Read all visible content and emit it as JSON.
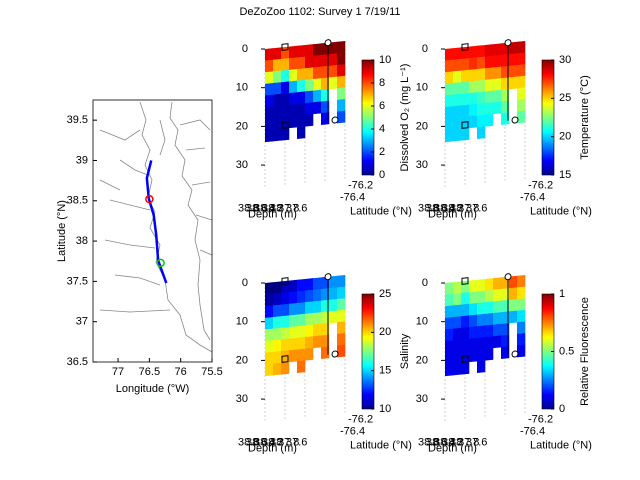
{
  "title": "DeZoZoo 1102: Survey 1 7/19/11",
  "chart_data": [
    {
      "type": "map",
      "x_label": "Longitude (°W)",
      "y_label": "Latitude (°N)",
      "xlim": [
        77.4,
        75.5
      ],
      "xticks": [
        77,
        76.5,
        76,
        75.5
      ],
      "ylim": [
        36.5,
        39.75
      ],
      "yticks": [
        36.5,
        37,
        37.5,
        38,
        38.5,
        39,
        39.5
      ],
      "track": {
        "color": "#0000ff",
        "lon": [
          76.47,
          76.54,
          76.51,
          76.43,
          76.39,
          76.36,
          76.23
        ],
        "lat": [
          39.0,
          38.78,
          38.53,
          38.32,
          38.07,
          37.76,
          37.48
        ]
      },
      "stations": {
        "lon": [
          76.5,
          76.32
        ],
        "lat": [
          38.52,
          37.73
        ],
        "colors": [
          "#ff0000",
          "#00cc00"
        ]
      }
    },
    {
      "type": "curtain",
      "c_label": "Dissolved O₂ (mg L⁻¹)",
      "clim": [
        0,
        10
      ],
      "cticks": [
        0,
        2,
        4,
        6,
        8,
        10
      ],
      "xticks": [
        38.8,
        38.6,
        38.4,
        38.2,
        38,
        37.8,
        37.6
      ],
      "yticks": [
        -76.2,
        -76.4
      ],
      "y_label": "Latitude (°N)",
      "z_label": "Depth (m)",
      "zlim": [
        0,
        33
      ],
      "zticks": [
        0,
        10,
        20,
        30
      ],
      "depths": [
        0,
        3,
        6,
        9,
        12,
        15,
        18,
        21
      ],
      "values": [
        [
          9,
          8,
          6,
          2,
          1,
          0.5,
          0.5,
          0.5
        ],
        [
          9,
          7,
          5,
          2,
          0.5,
          0.5,
          0.5,
          0.5
        ],
        [
          8,
          7,
          4,
          1,
          0.5,
          0.5,
          0.5,
          0.5
        ],
        [
          9,
          8,
          6,
          3,
          1,
          0.5,
          0.5,
          null
        ],
        [
          9,
          8,
          7,
          4,
          1,
          0.5,
          0.5,
          0.5
        ],
        [
          9,
          9,
          7,
          5,
          2,
          1,
          0.5,
          null
        ],
        [
          10,
          9,
          8,
          6,
          3,
          1,
          null,
          null
        ],
        [
          10,
          9,
          8,
          7,
          4,
          2,
          1,
          null
        ],
        [
          10,
          9,
          8,
          6,
          null,
          null,
          null,
          null
        ],
        [
          10,
          10,
          9,
          7,
          5,
          3,
          2,
          null
        ]
      ]
    },
    {
      "type": "curtain",
      "c_label": "Temperature (°C)",
      "clim": [
        15,
        30
      ],
      "cticks": [
        15,
        20,
        25,
        30
      ],
      "xticks": [
        38.8,
        38.6,
        38.4,
        38.2,
        38,
        37.8,
        37.6
      ],
      "yticks": [
        -76.2,
        -76.4
      ],
      "y_label": "Latitude (°N)",
      "z_label": "Depth (m)",
      "zlim": [
        0,
        33
      ],
      "zticks": [
        0,
        10,
        20,
        30
      ],
      "depths": [
        0,
        3,
        6,
        9,
        12,
        15,
        18,
        21
      ],
      "values": [
        [
          28,
          27,
          25,
          22,
          21,
          20,
          20,
          20
        ],
        [
          28,
          27,
          24,
          22,
          21,
          20,
          20,
          20
        ],
        [
          28,
          27,
          25,
          22,
          21,
          20,
          20,
          20
        ],
        [
          28,
          27.5,
          25,
          23,
          21,
          20.5,
          20,
          null
        ],
        [
          28,
          27,
          25,
          23,
          21.5,
          21,
          20.5,
          20
        ],
        [
          28.5,
          28,
          26,
          24,
          22,
          21,
          20.5,
          null
        ],
        [
          28.5,
          28,
          26,
          24,
          22,
          21,
          null,
          null
        ],
        [
          28.5,
          28,
          27,
          25,
          23,
          22,
          21,
          null
        ],
        [
          29,
          28,
          27,
          25,
          null,
          null,
          null,
          null
        ],
        [
          29,
          28,
          27,
          25,
          24,
          23,
          22,
          null
        ]
      ]
    },
    {
      "type": "curtain",
      "c_label": "Salinity",
      "clim": [
        10,
        25
      ],
      "cticks": [
        10,
        15,
        20,
        25
      ],
      "xticks": [
        38.8,
        38.6,
        38.4,
        38.2,
        38,
        37.8,
        37.6
      ],
      "yticks": [
        -76.2,
        -76.4
      ],
      "y_label": "Latitude (°N)",
      "z_label": "Depth (m)",
      "zlim": [
        0,
        33
      ],
      "zticks": [
        0,
        10,
        20,
        30
      ],
      "depths": [
        0,
        3,
        6,
        9,
        12,
        15,
        18,
        21
      ],
      "values": [
        [
          10,
          10.5,
          12,
          15,
          18,
          19,
          20,
          20
        ],
        [
          10,
          11,
          13,
          16,
          18,
          19.5,
          20,
          20.5
        ],
        [
          11,
          11.5,
          13,
          16,
          18.5,
          20,
          20.5,
          21
        ],
        [
          11,
          12,
          14,
          17,
          19,
          20,
          21,
          null
        ],
        [
          12,
          12.5,
          14,
          17,
          19,
          20,
          21,
          21.5
        ],
        [
          12,
          13,
          15,
          18,
          19.5,
          20.5,
          21,
          null
        ],
        [
          13,
          13.5,
          15,
          18,
          20,
          21,
          null,
          null
        ],
        [
          13,
          14,
          16,
          18.5,
          20,
          21,
          21.5,
          null
        ],
        [
          14,
          14.5,
          16,
          19,
          null,
          null,
          null,
          null
        ],
        [
          14,
          15,
          17,
          19,
          20.5,
          21.5,
          22,
          null
        ]
      ]
    },
    {
      "type": "curtain",
      "c_label": "Relative Fluorescence",
      "clim": [
        0,
        1
      ],
      "cticks": [
        0,
        0.5,
        1
      ],
      "xticks": [
        38.8,
        38.6,
        38.4,
        38.2,
        38,
        37.8,
        37.6
      ],
      "yticks": [
        -76.2,
        -76.4
      ],
      "y_label": "Latitude (°N)",
      "z_label": "Depth (m)",
      "zlim": [
        0,
        33
      ],
      "zticks": [
        0,
        10,
        20,
        30
      ],
      "depths": [
        0,
        3,
        6,
        9,
        12,
        15,
        18,
        21
      ],
      "values": [
        [
          0.5,
          0.45,
          0.3,
          0.2,
          0.15,
          0.1,
          0.1,
          0.1
        ],
        [
          0.55,
          0.5,
          0.3,
          0.2,
          0.1,
          0.1,
          0.1,
          0.1
        ],
        [
          0.5,
          0.4,
          0.3,
          0.15,
          0.1,
          0.1,
          0.1,
          0.1
        ],
        [
          0.6,
          0.5,
          0.35,
          0.2,
          0.15,
          0.1,
          0.1,
          null
        ],
        [
          0.6,
          0.5,
          0.4,
          0.25,
          0.15,
          0.1,
          0.1,
          0.1
        ],
        [
          0.65,
          0.55,
          0.4,
          0.25,
          0.15,
          0.1,
          0.1,
          null
        ],
        [
          0.7,
          0.6,
          0.45,
          0.3,
          0.2,
          0.1,
          null,
          null
        ],
        [
          0.7,
          0.6,
          0.45,
          0.3,
          0.2,
          0.15,
          0.1,
          null
        ],
        [
          0.8,
          0.7,
          0.5,
          0.3,
          null,
          null,
          null,
          null
        ],
        [
          0.75,
          0.65,
          0.5,
          0.35,
          0.25,
          0.15,
          0.1,
          null
        ]
      ]
    }
  ]
}
